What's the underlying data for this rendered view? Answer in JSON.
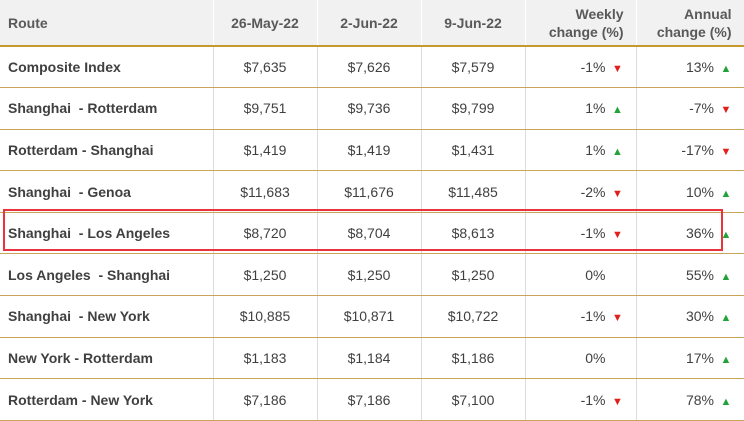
{
  "headers": {
    "route": "Route",
    "d1": "26-May-22",
    "d2": "2-Jun-22",
    "d3": "9-Jun-22",
    "weekly_line1": "Weekly",
    "weekly_line2": "change (%)",
    "annual_line1": "Annual",
    "annual_line2": "change (%)"
  },
  "rows": [
    {
      "route": "Composite Index",
      "d1": "$7,635",
      "d2": "$7,626",
      "d3": "$7,579",
      "weekly": "-1%",
      "weekly_dir": "down",
      "annual": "13%",
      "annual_dir": "up"
    },
    {
      "route": "Shanghai  - Rotterdam",
      "d1": "$9,751",
      "d2": "$9,736",
      "d3": "$9,799",
      "weekly": "1%",
      "weekly_dir": "up",
      "annual": "-7%",
      "annual_dir": "down"
    },
    {
      "route": "Rotterdam - Shanghai",
      "d1": "$1,419",
      "d2": "$1,419",
      "d3": "$1,431",
      "weekly": "1%",
      "weekly_dir": "up",
      "annual": "-17%",
      "annual_dir": "down"
    },
    {
      "route": "Shanghai  - Genoa",
      "d1": "$11,683",
      "d2": "$11,676",
      "d3": "$11,485",
      "weekly": "-2%",
      "weekly_dir": "down",
      "annual": "10%",
      "annual_dir": "up"
    },
    {
      "route": "Shanghai  - Los Angeles",
      "d1": "$8,720",
      "d2": "$8,704",
      "d3": "$8,613",
      "weekly": "-1%",
      "weekly_dir": "down",
      "annual": "36%",
      "annual_dir": "up"
    },
    {
      "route": "Los Angeles  - Shanghai",
      "d1": "$1,250",
      "d2": "$1,250",
      "d3": "$1,250",
      "weekly": "0%",
      "weekly_dir": "none",
      "annual": "55%",
      "annual_dir": "up"
    },
    {
      "route": "Shanghai  - New York",
      "d1": "$10,885",
      "d2": "$10,871",
      "d3": "$10,722",
      "weekly": "-1%",
      "weekly_dir": "down",
      "annual": "30%",
      "annual_dir": "up"
    },
    {
      "route": "New York - Rotterdam",
      "d1": "$1,183",
      "d2": "$1,184",
      "d3": "$1,186",
      "weekly": "0%",
      "weekly_dir": "none",
      "annual": "17%",
      "annual_dir": "up"
    },
    {
      "route": "Rotterdam - New York",
      "d1": "$7,186",
      "d2": "$7,186",
      "d3": "$7,100",
      "weekly": "-1%",
      "weekly_dir": "down",
      "annual": "78%",
      "annual_dir": "up"
    }
  ],
  "highlighted_row": 4,
  "colors": {
    "up": "#22a33a",
    "down": "#e0211b",
    "highlight": "#e8343a",
    "rule": "#c49a2c"
  },
  "icons": {
    "up": "up-triangle-icon",
    "down": "down-triangle-icon"
  }
}
